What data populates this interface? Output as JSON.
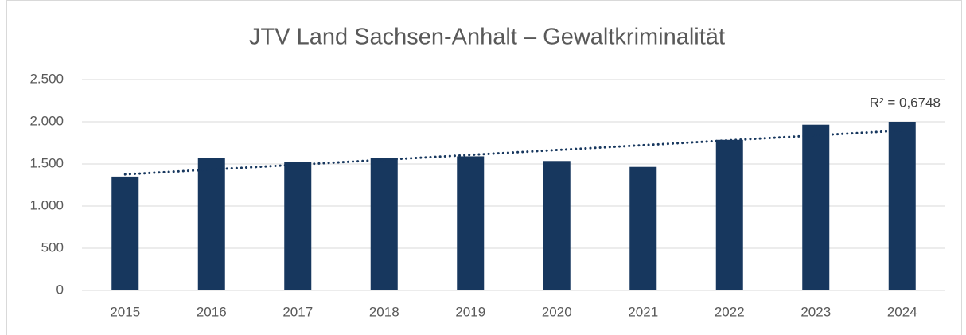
{
  "chart_data": {
    "type": "bar",
    "title": "JTV Land Sachsen-Anhalt –  Gewaltkriminalität",
    "categories": [
      "2015",
      "2016",
      "2017",
      "2018",
      "2019",
      "2020",
      "2021",
      "2022",
      "2023",
      "2024"
    ],
    "values": [
      1350,
      1575,
      1520,
      1575,
      1590,
      1535,
      1465,
      1785,
      1965,
      2000
    ],
    "color": "#17375e",
    "ylim": [
      0,
      2500
    ],
    "yticks": [
      0,
      500,
      {
        "value": 1000,
        "label": "1.000"
      },
      {
        "value": 1500,
        "label": "1.500"
      },
      {
        "value": 2000,
        "label": "2.000"
      },
      {
        "value": 2500,
        "label": "2.500"
      }
    ],
    "grid": true,
    "trendline": {
      "type": "linear",
      "label": "R² = 0,6748",
      "color": "#17375e"
    }
  }
}
